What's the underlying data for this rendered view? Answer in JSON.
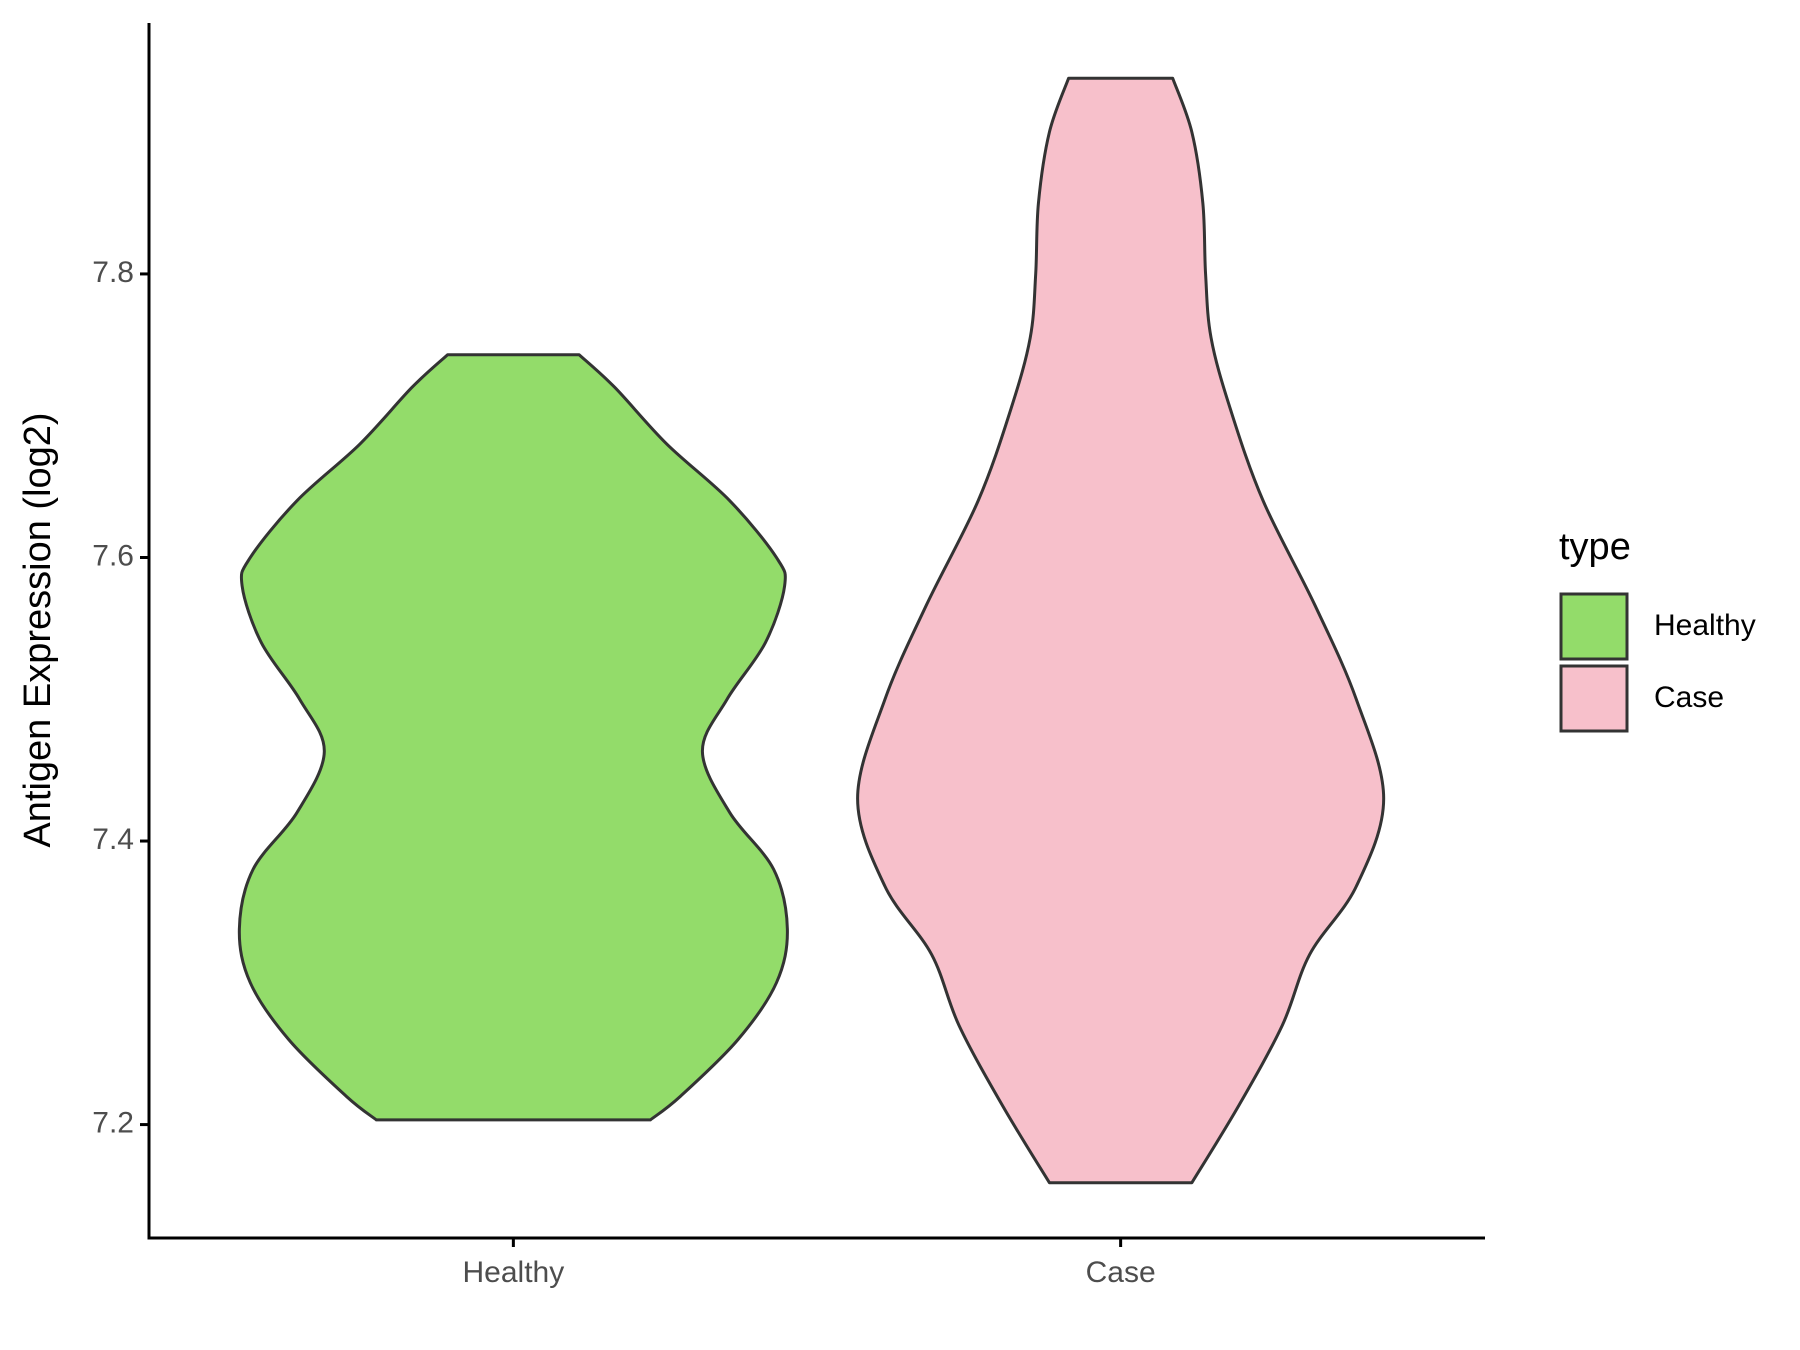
{
  "chart_data": {
    "type": "violin",
    "y_label": "Antigen Expression (log2)",
    "categories": [
      "Healthy",
      "Case"
    ],
    "ylim": [
      7.12,
      7.977
    ],
    "yticks": [
      7.2,
      7.4,
      7.6,
      7.8
    ],
    "legend_title": "type",
    "legend_position": "right",
    "series": [
      {
        "name": "Healthy",
        "color": "#93dc6a",
        "y": [
          7.743,
          7.72,
          7.68,
          7.64,
          7.6,
          7.58,
          7.54,
          7.5,
          7.463,
          7.42,
          7.38,
          7.338,
          7.3,
          7.26,
          7.22,
          7.2033
        ],
        "density": [
          0.24,
          0.37,
          0.56,
          0.79,
          0.96,
          0.99,
          0.92,
          0.78,
          0.69,
          0.79,
          0.95,
          1.0,
          0.96,
          0.82,
          0.61,
          0.5
        ]
      },
      {
        "name": "Case",
        "color": "#f7c0cb",
        "y": [
          7.938,
          7.9,
          7.85,
          7.8,
          7.755,
          7.705,
          7.64,
          7.566,
          7.5,
          7.43,
          7.368,
          7.32,
          7.27,
          7.213,
          7.159
        ],
        "density": [
          0.19,
          0.26,
          0.3,
          0.31,
          0.33,
          0.4,
          0.52,
          0.71,
          0.86,
          0.96,
          0.86,
          0.69,
          0.59,
          0.43,
          0.26
        ]
      }
    ]
  }
}
